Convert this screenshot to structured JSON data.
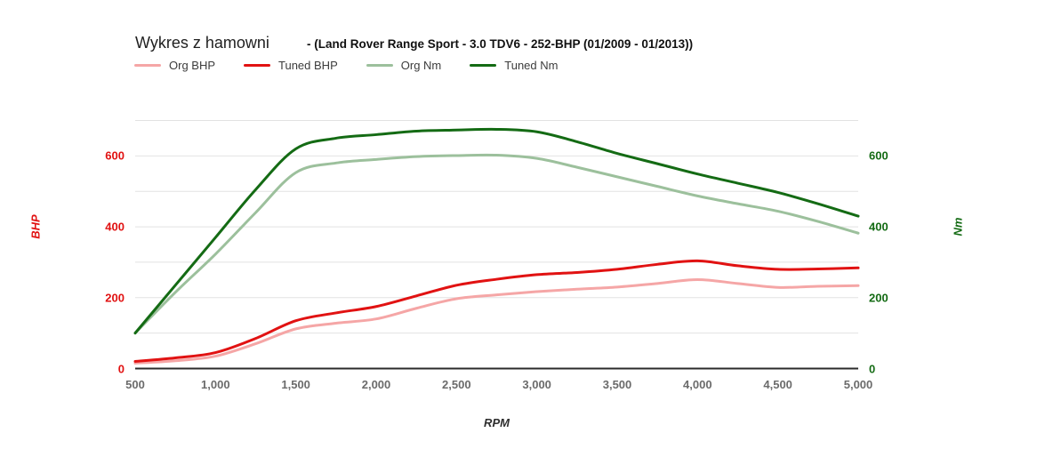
{
  "header": {
    "title": "Wykres z hamowni",
    "subtitle": "- (Land Rover Range Sport - 3.0 TDV6 - 252-BHP (01/2009 - 01/2013))"
  },
  "colors": {
    "org_bhp": "#F5A6A6",
    "tuned_bhp": "#E11212",
    "org_nm": "#9CC09C",
    "tuned_nm": "#146B14",
    "x_tick": "#6B6B6B",
    "left_tick": "#E11212",
    "right_tick": "#146B14",
    "gridline": "#E2E2E2",
    "baseline": "#2B2B2B",
    "background": "#FFFFFF"
  },
  "chart_data": {
    "type": "line",
    "title": "Wykres z hamowni - (Land Rover Range Sport - 3.0 TDV6 - 252-BHP (01/2009 - 01/2013))",
    "xlabel": "RPM",
    "ylabel_left": "BHP",
    "ylabel_right": "Nm",
    "xlim": [
      500,
      5000
    ],
    "ylim": [
      0,
      700
    ],
    "grid": true,
    "legend_position": "top-left",
    "x_ticks": [
      500,
      1000,
      1500,
      2000,
      2500,
      3000,
      3500,
      4000,
      4500,
      5000
    ],
    "x_tick_labels": [
      "500",
      "1,000",
      "1,500",
      "2,000",
      "2,500",
      "3,000",
      "3,500",
      "4,000",
      "4,500",
      "5,000"
    ],
    "y_ticks": [
      0,
      200,
      400,
      600
    ],
    "y_tick_labels": [
      "0",
      "200",
      "400",
      "600"
    ],
    "x": [
      500,
      750,
      1000,
      1250,
      1500,
      1750,
      2000,
      2250,
      2500,
      2750,
      3000,
      3250,
      3500,
      3750,
      4000,
      4250,
      4500,
      4750,
      5000
    ],
    "series": [
      {
        "key": "org-bhp",
        "name": "Org BHP",
        "axis": "left",
        "color_key": "org_bhp",
        "values": [
          15,
          22,
          35,
          70,
          112,
          128,
          140,
          170,
          197,
          208,
          217,
          224,
          230,
          240,
          251,
          240,
          229,
          232,
          234
        ]
      },
      {
        "key": "tuned-bhp",
        "name": "Tuned BHP",
        "axis": "left",
        "color_key": "tuned_bhp",
        "values": [
          20,
          30,
          45,
          85,
          135,
          157,
          175,
          205,
          235,
          252,
          265,
          271,
          280,
          294,
          304,
          290,
          280,
          281,
          284
        ]
      },
      {
        "key": "org-nm",
        "name": "Org Nm",
        "axis": "right",
        "color_key": "org_nm",
        "values": [
          100,
          215,
          323,
          440,
          553,
          580,
          590,
          598,
          601,
          602,
          593,
          568,
          541,
          514,
          487,
          465,
          444,
          415,
          382
        ]
      },
      {
        "key": "tuned-nm",
        "name": "Tuned Nm",
        "axis": "right",
        "color_key": "tuned_nm",
        "values": [
          100,
          235,
          370,
          505,
          620,
          650,
          660,
          670,
          673,
          675,
          668,
          640,
          607,
          578,
          549,
          523,
          497,
          465,
          430
        ]
      }
    ]
  }
}
